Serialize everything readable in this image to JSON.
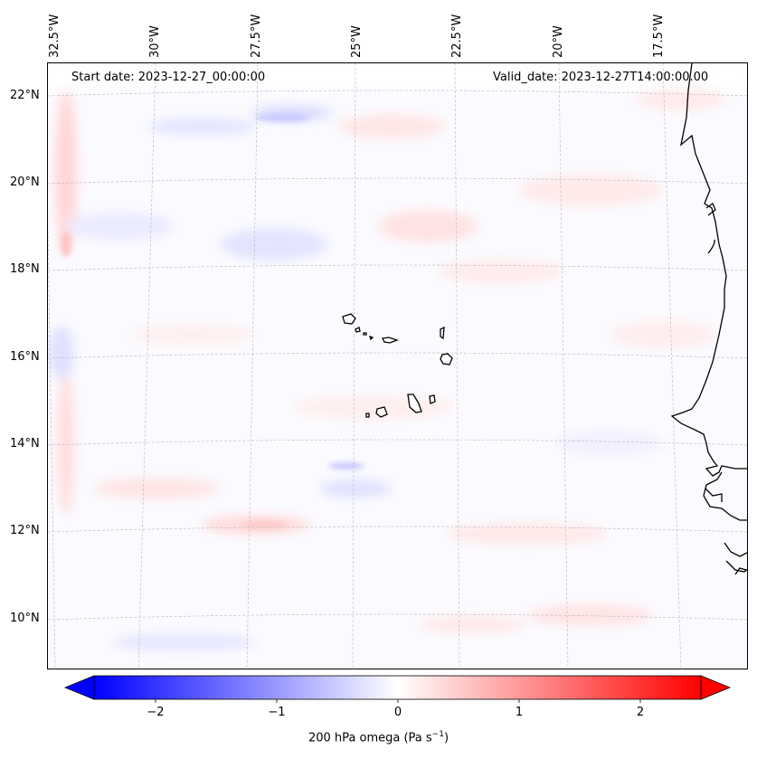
{
  "map": {
    "start_date": "Start date: 2023-12-27_00:00:00",
    "valid_date": "Valid_date: 2023-12-27T14:00:00.00",
    "lon_labels": [
      "32.5°W",
      "30°W",
      "27.5°W",
      "25°W",
      "22.5°W",
      "20°W",
      "17.5°W"
    ],
    "lat_labels": [
      "22°N",
      "20°N",
      "18°N",
      "16°N",
      "14°N",
      "12°N",
      "10°N"
    ],
    "field": "200 hPa omega",
    "colors": {
      "negative": "#0000ff",
      "zero": "#ffffff",
      "positive": "#ff0000",
      "coast": "#000000",
      "grid": "#b0b0b0"
    }
  },
  "colorbar": {
    "ticks": [
      "−2",
      "−1",
      "0",
      "1",
      "2"
    ],
    "tick_values": [
      -2,
      -1,
      0,
      1,
      2
    ],
    "range": [
      -2.5,
      2.5
    ],
    "label_main": "200 hPa omega (Pa s",
    "label_exp": "−1",
    "label_end": ")"
  }
}
